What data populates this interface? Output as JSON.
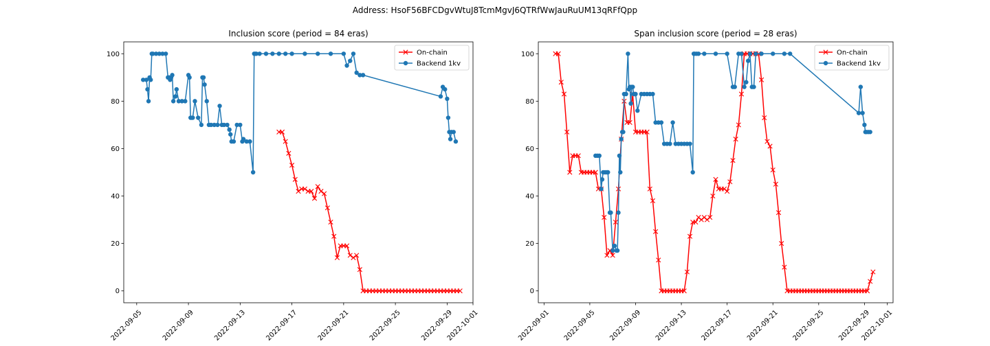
{
  "figure": {
    "suptitle": "Address: HsoF56BFCDgvWtuJ8TcmMgvJ6QTRfWwJauRuUM13qRFfQpp"
  },
  "colors": {
    "on_chain": "#ff0000",
    "backend": "#1f77b4"
  },
  "chart_data": [
    {
      "type": "line",
      "title": "Inclusion score (period = 84 eras)",
      "xlabel": "",
      "ylabel": "",
      "x_type": "date",
      "xlim": [
        "2022-09-04",
        "2022-10-01"
      ],
      "ylim": [
        -5,
        105
      ],
      "y_ticks": [
        0,
        20,
        40,
        60,
        80,
        100
      ],
      "x_ticks": [
        "2022-09-05",
        "2022-09-09",
        "2022-09-13",
        "2022-09-17",
        "2022-09-21",
        "2022-09-25",
        "2022-09-29",
        "2022-10-01"
      ],
      "legend_position": "upper right",
      "grid": false,
      "series": [
        {
          "name": "On-chain",
          "color": "#ff0000",
          "marker": "x",
          "x": [
            "2022-09-16 00:00",
            "2022-09-16 06:00",
            "2022-09-16 12:00",
            "2022-09-16 18:00",
            "2022-09-17 00:00",
            "2022-09-17 06:00",
            "2022-09-17 12:00",
            "2022-09-17 18:00",
            "2022-09-18 00:00",
            "2022-09-18 06:00",
            "2022-09-18 12:00",
            "2022-09-18 18:00",
            "2022-09-19 00:00",
            "2022-09-19 06:00",
            "2022-09-19 12:00",
            "2022-09-19 18:00",
            "2022-09-20 00:00",
            "2022-09-20 06:00",
            "2022-09-20 12:00",
            "2022-09-20 18:00",
            "2022-09-21 00:00",
            "2022-09-21 06:00",
            "2022-09-21 12:00",
            "2022-09-21 18:00",
            "2022-09-22 00:00",
            "2022-09-22 06:00",
            "2022-09-22 12:00",
            "2022-09-22 18:00",
            "2022-09-23 00:00",
            "2022-09-23 06:00",
            "2022-09-23 12:00",
            "2022-09-23 18:00",
            "2022-09-24 00:00",
            "2022-09-24 06:00",
            "2022-09-24 12:00",
            "2022-09-24 18:00",
            "2022-09-25 00:00",
            "2022-09-25 06:00",
            "2022-09-25 12:00",
            "2022-09-25 18:00",
            "2022-09-26 00:00",
            "2022-09-26 06:00",
            "2022-09-26 12:00",
            "2022-09-26 18:00",
            "2022-09-27 00:00",
            "2022-09-27 06:00",
            "2022-09-27 12:00",
            "2022-09-27 18:00",
            "2022-09-28 00:00",
            "2022-09-28 06:00",
            "2022-09-28 12:00",
            "2022-09-28 18:00",
            "2022-09-29 00:00",
            "2022-09-29 06:00",
            "2022-09-29 12:00",
            "2022-09-29 18:00",
            "2022-09-30 00:00"
          ],
          "y": [
            67,
            67,
            63,
            58,
            53,
            47,
            42,
            43,
            43,
            42,
            42,
            39,
            44,
            42,
            41,
            35,
            29,
            23,
            14,
            19,
            19,
            19,
            15,
            14,
            15,
            9,
            0,
            0,
            0,
            0,
            0,
            0,
            0,
            0,
            0,
            0,
            0,
            0,
            0,
            0,
            0,
            0,
            0,
            0,
            0,
            0,
            0,
            0,
            0,
            0,
            0,
            0,
            0,
            0,
            0,
            0,
            0
          ]
        },
        {
          "name": "Backend 1kv",
          "color": "#1f77b4",
          "marker": "o",
          "x": [
            "2022-09-05 12:00",
            "2022-09-05 18:00",
            "2022-09-05 20:00",
            "2022-09-05 22:00",
            "2022-09-06 00:00",
            "2022-09-06 02:00",
            "2022-09-06 04:00",
            "2022-09-06 06:00",
            "2022-09-06 12:00",
            "2022-09-06 18:00",
            "2022-09-07 00:00",
            "2022-09-07 06:00",
            "2022-09-07 10:00",
            "2022-09-07 12:00",
            "2022-09-07 14:00",
            "2022-09-07 16:00",
            "2022-09-07 18:00",
            "2022-09-07 20:00",
            "2022-09-08 00:00",
            "2022-09-08 02:00",
            "2022-09-08 06:00",
            "2022-09-08 12:00",
            "2022-09-08 18:00",
            "2022-09-09 00:00",
            "2022-09-09 02:00",
            "2022-09-09 04:00",
            "2022-09-09 06:00",
            "2022-09-09 08:00",
            "2022-09-09 12:00",
            "2022-09-09 18:00",
            "2022-09-10 00:00",
            "2022-09-10 02:00",
            "2022-09-10 04:00",
            "2022-09-10 06:00",
            "2022-09-10 10:00",
            "2022-09-10 14:00",
            "2022-09-10 18:00",
            "2022-09-11 00:00",
            "2022-09-11 06:00",
            "2022-09-11 10:00",
            "2022-09-11 14:00",
            "2022-09-11 18:00",
            "2022-09-12 00:00",
            "2022-09-12 04:00",
            "2022-09-12 06:00",
            "2022-09-12 08:00",
            "2022-09-12 12:00",
            "2022-09-12 18:00",
            "2022-09-13 00:00",
            "2022-09-13 04:00",
            "2022-09-13 06:00",
            "2022-09-13 12:00",
            "2022-09-13 18:00",
            "2022-09-14 00:00",
            "2022-09-14 02:00",
            "2022-09-14 04:00",
            "2022-09-14 06:00",
            "2022-09-14 12:00",
            "2022-09-15 00:00",
            "2022-09-15 12:00",
            "2022-09-16 00:00",
            "2022-09-16 12:00",
            "2022-09-17 00:00",
            "2022-09-18 00:00",
            "2022-09-19 00:00",
            "2022-09-20 00:00",
            "2022-09-21 00:00",
            "2022-09-21 06:00",
            "2022-09-21 12:00",
            "2022-09-21 18:00",
            "2022-09-22 00:00",
            "2022-09-22 06:00",
            "2022-09-22 12:00",
            "2022-09-28 12:00",
            "2022-09-28 16:00",
            "2022-09-28 20:00",
            "2022-09-29 00:00",
            "2022-09-29 02:00",
            "2022-09-29 04:00",
            "2022-09-29 06:00",
            "2022-09-29 08:00",
            "2022-09-29 12:00",
            "2022-09-29 16:00"
          ],
          "y": [
            89,
            89,
            85,
            80,
            90,
            89,
            100,
            100,
            100,
            100,
            100,
            100,
            90,
            90,
            89,
            90,
            91,
            80,
            82,
            85,
            80,
            80,
            80,
            91,
            90,
            73,
            73,
            73,
            80,
            73,
            70,
            90,
            90,
            87,
            80,
            70,
            70,
            70,
            70,
            78,
            70,
            70,
            70,
            68,
            66,
            63,
            63,
            70,
            70,
            63,
            64,
            63,
            63,
            50,
            100,
            100,
            100,
            100,
            100,
            100,
            100,
            100,
            100,
            100,
            100,
            100,
            100,
            95,
            97,
            100,
            92,
            91,
            91,
            82,
            86,
            85,
            81,
            73,
            67,
            64,
            67,
            67,
            63
          ]
        }
      ]
    },
    {
      "type": "line",
      "title": "Span inclusion score (period = 28 eras)",
      "xlabel": "",
      "ylabel": "",
      "x_type": "date",
      "xlim": [
        "2022-08-31 12:00",
        "2022-10-01 12:00"
      ],
      "ylim": [
        -5,
        105
      ],
      "y_ticks": [
        0,
        20,
        40,
        60,
        80,
        100
      ],
      "x_ticks": [
        "2022-09-01",
        "2022-09-05",
        "2022-09-09",
        "2022-09-13",
        "2022-09-17",
        "2022-09-21",
        "2022-09-25",
        "2022-09-29",
        "2022-10-01"
      ],
      "legend_position": "upper right",
      "grid": false,
      "series": [
        {
          "name": "On-chain",
          "color": "#ff0000",
          "marker": "x",
          "x": [
            "2022-09-02 00:00",
            "2022-09-02 06:00",
            "2022-09-02 12:00",
            "2022-09-02 18:00",
            "2022-09-03 00:00",
            "2022-09-03 06:00",
            "2022-09-03 12:00",
            "2022-09-03 18:00",
            "2022-09-04 00:00",
            "2022-09-04 06:00",
            "2022-09-04 12:00",
            "2022-09-04 18:00",
            "2022-09-05 00:00",
            "2022-09-05 06:00",
            "2022-09-05 12:00",
            "2022-09-05 18:00",
            "2022-09-06 00:00",
            "2022-09-06 06:00",
            "2022-09-06 12:00",
            "2022-09-06 18:00",
            "2022-09-07 00:00",
            "2022-09-07 06:00",
            "2022-09-07 12:00",
            "2022-09-07 18:00",
            "2022-09-08 00:00",
            "2022-09-08 06:00",
            "2022-09-08 12:00",
            "2022-09-08 18:00",
            "2022-09-09 00:00",
            "2022-09-09 06:00",
            "2022-09-09 12:00",
            "2022-09-09 18:00",
            "2022-09-10 00:00",
            "2022-09-10 06:00",
            "2022-09-10 12:00",
            "2022-09-10 18:00",
            "2022-09-11 00:00",
            "2022-09-11 06:00",
            "2022-09-11 12:00",
            "2022-09-11 18:00",
            "2022-09-12 00:00",
            "2022-09-12 06:00",
            "2022-09-12 12:00",
            "2022-09-12 18:00",
            "2022-09-13 00:00",
            "2022-09-13 06:00",
            "2022-09-13 12:00",
            "2022-09-13 18:00",
            "2022-09-14 00:00",
            "2022-09-14 06:00",
            "2022-09-14 12:00",
            "2022-09-14 18:00",
            "2022-09-15 00:00",
            "2022-09-15 06:00",
            "2022-09-15 12:00",
            "2022-09-15 18:00",
            "2022-09-16 00:00",
            "2022-09-16 06:00",
            "2022-09-16 12:00",
            "2022-09-16 18:00",
            "2022-09-17 00:00",
            "2022-09-17 06:00",
            "2022-09-17 12:00",
            "2022-09-17 18:00",
            "2022-09-18 00:00",
            "2022-09-18 06:00",
            "2022-09-18 12:00",
            "2022-09-18 18:00",
            "2022-09-19 00:00",
            "2022-09-19 06:00",
            "2022-09-19 12:00",
            "2022-09-19 18:00",
            "2022-09-20 00:00",
            "2022-09-20 06:00",
            "2022-09-20 12:00",
            "2022-09-20 18:00",
            "2022-09-21 00:00",
            "2022-09-21 06:00",
            "2022-09-21 12:00",
            "2022-09-21 18:00",
            "2022-09-22 00:00",
            "2022-09-22 06:00",
            "2022-09-22 12:00",
            "2022-09-22 18:00",
            "2022-09-23 00:00",
            "2022-09-23 06:00",
            "2022-09-23 12:00",
            "2022-09-23 18:00",
            "2022-09-24 00:00",
            "2022-09-24 06:00",
            "2022-09-24 12:00",
            "2022-09-24 18:00",
            "2022-09-25 00:00",
            "2022-09-25 06:00",
            "2022-09-25 12:00",
            "2022-09-25 18:00",
            "2022-09-26 00:00",
            "2022-09-26 06:00",
            "2022-09-26 12:00",
            "2022-09-26 18:00",
            "2022-09-27 00:00",
            "2022-09-27 06:00",
            "2022-09-27 12:00",
            "2022-09-27 18:00",
            "2022-09-28 00:00",
            "2022-09-28 06:00",
            "2022-09-28 12:00",
            "2022-09-28 18:00",
            "2022-09-29 00:00",
            "2022-09-29 06:00",
            "2022-09-29 12:00",
            "2022-09-29 18:00"
          ],
          "y": [
            100,
            100,
            88,
            83,
            67,
            50,
            57,
            57,
            57,
            50,
            50,
            50,
            50,
            50,
            50,
            43,
            43,
            31,
            15,
            17,
            15,
            29,
            43,
            64,
            80,
            71,
            71,
            83,
            67,
            67,
            67,
            67,
            67,
            43,
            38,
            25,
            13,
            0,
            0,
            0,
            0,
            0,
            0,
            0,
            0,
            0,
            8,
            23,
            29,
            29,
            31,
            30,
            31,
            30,
            31,
            40,
            47,
            43,
            43,
            43,
            42,
            46,
            55,
            64,
            70,
            83,
            100,
            100,
            100,
            100,
            100,
            100,
            89,
            73,
            63,
            61,
            51,
            45,
            33,
            20,
            10,
            0,
            0,
            0,
            0,
            0,
            0,
            0,
            0,
            0,
            0,
            0,
            0,
            0,
            0,
            0,
            0,
            0,
            0,
            0,
            0,
            0,
            0,
            0,
            0,
            0,
            0,
            0,
            0,
            0,
            4,
            8
          ]
        },
        {
          "name": "Backend 1kv",
          "color": "#1f77b4",
          "marker": "o",
          "x": [
            "2022-09-05 12:00",
            "2022-09-05 16:00",
            "2022-09-05 20:00",
            "2022-09-06 00:00",
            "2022-09-06 02:00",
            "2022-09-06 04:00",
            "2022-09-06 08:00",
            "2022-09-06 12:00",
            "2022-09-06 14:00",
            "2022-09-06 18:00",
            "2022-09-06 20:00",
            "2022-09-07 00:00",
            "2022-09-07 04:00",
            "2022-09-07 08:00",
            "2022-09-07 10:00",
            "2022-09-07 12:00",
            "2022-09-07 14:00",
            "2022-09-07 16:00",
            "2022-09-07 18:00",
            "2022-09-07 20:00",
            "2022-09-07 22:00",
            "2022-09-08 00:00",
            "2022-09-08 04:00",
            "2022-09-08 08:00",
            "2022-09-08 10:00",
            "2022-09-08 12:00",
            "2022-09-08 14:00",
            "2022-09-08 16:00",
            "2022-09-08 18:00",
            "2022-09-08 20:00",
            "2022-09-09 00:00",
            "2022-09-09 04:00",
            "2022-09-09 12:00",
            "2022-09-09 18:00",
            "2022-09-10 00:00",
            "2022-09-10 06:00",
            "2022-09-10 12:00",
            "2022-09-10 18:00",
            "2022-09-11 00:00",
            "2022-09-11 06:00",
            "2022-09-11 12:00",
            "2022-09-11 18:00",
            "2022-09-12 00:00",
            "2022-09-12 06:00",
            "2022-09-12 12:00",
            "2022-09-12 18:00",
            "2022-09-13 00:00",
            "2022-09-13 06:00",
            "2022-09-13 12:00",
            "2022-09-13 18:00",
            "2022-09-14 00:00",
            "2022-09-14 02:00",
            "2022-09-14 04:00",
            "2022-09-14 08:00",
            "2022-09-14 12:00",
            "2022-09-15 00:00",
            "2022-09-16 00:00",
            "2022-09-17 00:00",
            "2022-09-17 12:00",
            "2022-09-17 16:00",
            "2022-09-18 00:00",
            "2022-09-18 06:00",
            "2022-09-18 12:00",
            "2022-09-18 16:00",
            "2022-09-18 20:00",
            "2022-09-19 00:00",
            "2022-09-19 04:00",
            "2022-09-19 08:00",
            "2022-09-19 12:00",
            "2022-09-20 00:00",
            "2022-09-21 00:00",
            "2022-09-22 00:00",
            "2022-09-22 12:00",
            "2022-09-28 12:00",
            "2022-09-28 16:00",
            "2022-09-28 20:00",
            "2022-09-29 00:00",
            "2022-09-29 02:00",
            "2022-09-29 04:00",
            "2022-09-29 08:00",
            "2022-09-29 12:00"
          ],
          "y": [
            57,
            57,
            57,
            43,
            47,
            50,
            50,
            50,
            50,
            33,
            33,
            17,
            19,
            17,
            17,
            33,
            57,
            50,
            64,
            67,
            67,
            83,
            83,
            100,
            85,
            86,
            79,
            86,
            86,
            83,
            83,
            76,
            83,
            83,
            83,
            83,
            83,
            71,
            71,
            71,
            62,
            62,
            62,
            71,
            62,
            62,
            62,
            62,
            62,
            62,
            50,
            100,
            100,
            100,
            100,
            100,
            100,
            100,
            86,
            86,
            100,
            100,
            86,
            88,
            97,
            100,
            86,
            86,
            100,
            100,
            100,
            100,
            100,
            75,
            86,
            75,
            70,
            67,
            67,
            67,
            67
          ]
        }
      ]
    }
  ]
}
